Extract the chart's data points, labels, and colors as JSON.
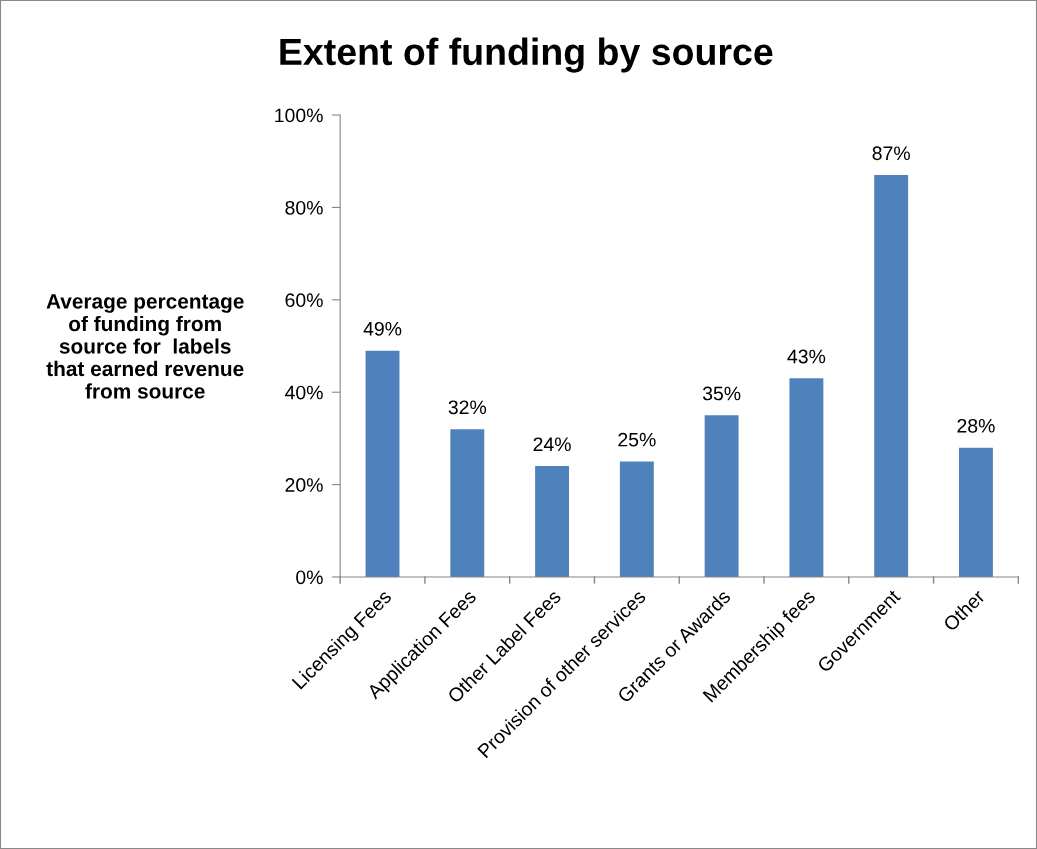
{
  "chart_data": {
    "type": "bar",
    "title": "Extent of funding by source",
    "ylabel": "Average percentage of funding from source for  labels that earned revenue from source",
    "categories": [
      "Licensing Fees",
      "Application Fees",
      "Other Label Fees",
      "Provision of other services",
      "Grants or Awards",
      "Membership fees",
      "Government",
      "Other"
    ],
    "values": [
      49,
      32,
      24,
      25,
      35,
      43,
      87,
      28
    ],
    "value_labels": [
      "49%",
      "32%",
      "24%",
      "25%",
      "35%",
      "43%",
      "87%",
      "28%"
    ],
    "color": "#4f81bd",
    "ylim": [
      0,
      100
    ],
    "yticks": [
      {
        "value": 0,
        "label": "0%"
      },
      {
        "value": 20,
        "label": "20%"
      },
      {
        "value": 40,
        "label": "40%"
      },
      {
        "value": 60,
        "label": "60%"
      },
      {
        "value": 80,
        "label": "80%"
      },
      {
        "value": 100,
        "label": "100%"
      }
    ],
    "grid": false
  }
}
